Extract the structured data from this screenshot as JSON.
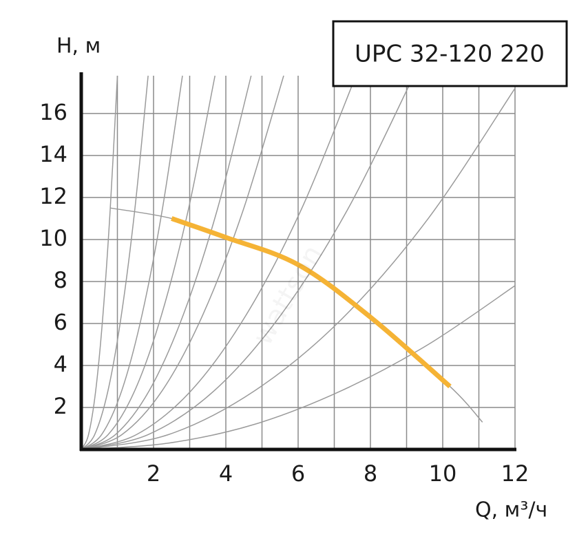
{
  "chart_data": {
    "type": "pump-curve",
    "title": "UPC 32-120 220",
    "y_label": "H, м",
    "x_label": "Q, м³/ч",
    "watermark": "wattson",
    "xlim": [
      0,
      12
    ],
    "ylim": [
      0,
      17.8
    ],
    "xticks": [
      2,
      4,
      6,
      8,
      10,
      12
    ],
    "x_minor_grid": [
      1,
      3,
      5,
      7,
      9,
      11
    ],
    "yticks": [
      2,
      4,
      6,
      8,
      10,
      12,
      14,
      16
    ],
    "grid": true,
    "grid_color": "#8a8a8a",
    "series": [
      {
        "color": "#9a9a9a",
        "x": [
          0.8,
          2.5,
          4,
          6,
          8,
          10.2,
          11.1
        ],
        "values": [
          11.5,
          11.0,
          10.1,
          8.8,
          6.3,
          3.0,
          1.3
        ]
      },
      {
        "color": "#f5b335",
        "x": [
          2.5,
          4,
          6,
          8,
          10.2
        ],
        "values": [
          11.0,
          10.1,
          8.8,
          6.3,
          3.0
        ]
      }
    ],
    "system_color": "#9a9a9a",
    "system_curves": [
      {
        "x": [
          0,
          0.2,
          0.4,
          0.6,
          0.8,
          1.0
        ],
        "values": [
          0,
          0.7,
          2.8,
          6.4,
          11.4,
          17.8
        ]
      },
      {
        "x": [
          0,
          0.37,
          0.74,
          1.11,
          1.48,
          1.85
        ],
        "values": [
          0,
          0.7,
          2.8,
          6.4,
          11.4,
          17.8
        ]
      },
      {
        "x": [
          0,
          0.56,
          1.12,
          1.68,
          2.24,
          2.8
        ],
        "values": [
          0,
          0.7,
          2.8,
          6.4,
          11.4,
          17.8
        ]
      },
      {
        "x": [
          0,
          0.74,
          1.48,
          2.22,
          2.96,
          3.7
        ],
        "values": [
          0,
          0.7,
          2.8,
          6.4,
          11.4,
          17.8
        ]
      },
      {
        "x": [
          0,
          0.94,
          1.88,
          2.82,
          3.76,
          4.7
        ],
        "values": [
          0,
          0.7,
          2.8,
          6.4,
          11.4,
          17.8
        ]
      },
      {
        "x": [
          0,
          1.12,
          2.24,
          3.36,
          4.48,
          5.6
        ],
        "values": [
          0,
          0.7,
          2.8,
          6.4,
          11.4,
          17.8
        ]
      },
      {
        "x": [
          0,
          1.52,
          3.04,
          4.56,
          6.08,
          7.6
        ],
        "values": [
          0,
          0.7,
          2.8,
          6.4,
          11.4,
          17.8
        ]
      },
      {
        "x": [
          0,
          1.84,
          3.68,
          5.52,
          7.36,
          9.2
        ],
        "values": [
          0,
          0.7,
          2.8,
          6.4,
          11.4,
          17.8
        ]
      },
      {
        "x": [
          0,
          2.4,
          4.8,
          7.2,
          9.6,
          12
        ],
        "values": [
          0,
          0.7,
          2.8,
          6.2,
          11.0,
          17.2
        ]
      },
      {
        "x": [
          0,
          2.4,
          4.8,
          7.2,
          9.6,
          12
        ],
        "values": [
          0,
          0.3,
          1.2,
          2.8,
          5.0,
          7.8
        ]
      }
    ]
  }
}
